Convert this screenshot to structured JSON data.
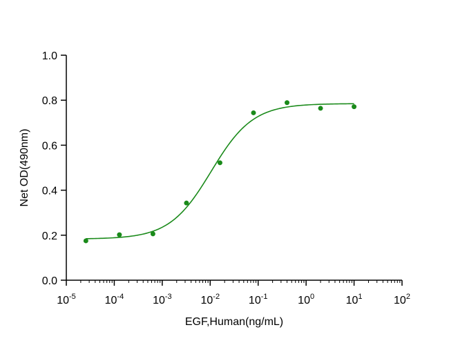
{
  "chart_data": {
    "type": "scatter",
    "xscale": "log",
    "xlabel": "EGF,Human(ng/mL)",
    "ylabel": "Net OD(490nm)",
    "xlim": [
      1e-05,
      100
    ],
    "ylim": [
      0,
      1.0
    ],
    "grid": false,
    "legend": "none",
    "colors": {
      "series": "#1a8a1a",
      "axis": "#000000"
    },
    "x_ticks": [
      {
        "base": "10",
        "exp": "-5"
      },
      {
        "base": "10",
        "exp": "-4"
      },
      {
        "base": "10",
        "exp": "-3"
      },
      {
        "base": "10",
        "exp": "-2"
      },
      {
        "base": "10",
        "exp": "-1"
      },
      {
        "base": "10",
        "exp": "0"
      },
      {
        "base": "10",
        "exp": "1"
      },
      {
        "base": "10",
        "exp": "2"
      }
    ],
    "y_ticks": [
      "0.0",
      "0.2",
      "0.4",
      "0.6",
      "0.8",
      "1.0"
    ],
    "series": [
      {
        "x": [
          2.56e-05,
          0.000128,
          0.00064,
          0.0032,
          0.016,
          0.08,
          0.4,
          2,
          10
        ],
        "y": [
          0.175,
          0.202,
          0.206,
          0.343,
          0.522,
          0.744,
          0.789,
          0.764,
          0.771
        ]
      }
    ],
    "fit": {
      "type": "4PL",
      "bottom": 0.183,
      "top": 0.785,
      "ec50": 0.0105,
      "hill": 1.0
    }
  }
}
